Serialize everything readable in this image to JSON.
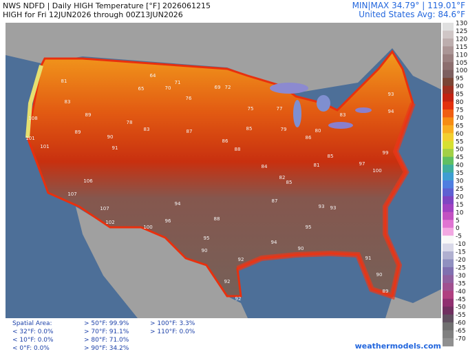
{
  "header": {
    "title": "NWS NDFD | Daily HIGH Temperature [°F]  2026061215",
    "subtitle": "HIGH for Fri 12JUN2026 through 00Z13JUN2026",
    "minmax": "MIN|MAX 34.79° | 119.01°F",
    "average": "United States Avg: 84.6°F"
  },
  "colorbar": {
    "ticks": [
      130,
      125,
      120,
      115,
      110,
      105,
      100,
      95,
      90,
      85,
      80,
      75,
      70,
      65,
      60,
      55,
      50,
      45,
      40,
      35,
      30,
      25,
      20,
      15,
      10,
      5,
      0,
      -5,
      -10,
      -15,
      -20,
      -25,
      -30,
      -35,
      -40,
      -45,
      -50,
      -55,
      -60,
      -65,
      -70
    ]
  },
  "stations": [
    64,
    70,
    71,
    69,
    72,
    65,
    81,
    83,
    89,
    101,
    108,
    90,
    91,
    87,
    85,
    86,
    88,
    84,
    82,
    81,
    85,
    93,
    94,
    97,
    99,
    100,
    107,
    107,
    102,
    100,
    94,
    95,
    92,
    92,
    94,
    95,
    93,
    90,
    89,
    90,
    91,
    88,
    96,
    87,
    85,
    79,
    77,
    75,
    76,
    78,
    83,
    89,
    106,
    101,
    92,
    90,
    93,
    86,
    83,
    80
  ],
  "stats": {
    "title": "Spatial Area:",
    "items": [
      "< 32°F: 0.0%",
      "< 10°F: 0.0%",
      "< 0°F: 0.0%",
      "> 50°F: 99.9%",
      "> 70°F: 91.1%",
      "> 80°F: 71.0%",
      "> 90°F: 34.2%",
      "> 100°F: 3.3%",
      "> 110°F: 0.0%"
    ]
  },
  "credit": "weathermodels.com"
}
